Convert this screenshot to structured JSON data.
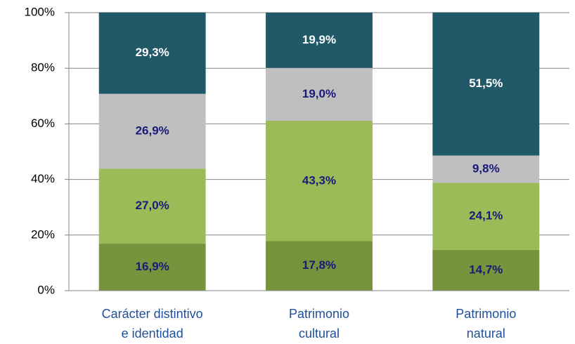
{
  "chart_data": {
    "type": "stacked_bar",
    "categories": [
      [
        "Carácter distintivo",
        "e identidad"
      ],
      [
        "Patrimonio",
        "cultural"
      ],
      [
        "Patrimonio",
        "natural"
      ]
    ],
    "series": [
      {
        "color": "#77933c",
        "label_color": "#1a1a7a",
        "values": [
          16.9,
          17.8,
          14.7
        ],
        "value_labels": [
          "16,9%",
          "17,8%",
          "14,7%"
        ]
      },
      {
        "color": "#9bbb59",
        "label_color": "#1a1a7a",
        "values": [
          27.0,
          43.3,
          24.1
        ],
        "value_labels": [
          "27,0%",
          "43,3%",
          "24,1%"
        ]
      },
      {
        "color": "#bfbfbf",
        "label_color": "#1a1a7a",
        "values": [
          26.9,
          19.0,
          9.8
        ],
        "value_labels": [
          "26,9%",
          "19,0%",
          "9,8%"
        ]
      },
      {
        "color": "#215968",
        "label_color": "#ffffff",
        "values": [
          29.3,
          19.9,
          51.5
        ],
        "value_labels": [
          "29,3%",
          "19,9%",
          "51,5%"
        ]
      }
    ],
    "ylim": [
      0,
      100
    ],
    "yticks": [
      {
        "value": 0,
        "label": "0%"
      },
      {
        "value": 20,
        "label": "20%"
      },
      {
        "value": 40,
        "label": "40%"
      },
      {
        "value": 60,
        "label": "60%"
      },
      {
        "value": 80,
        "label": "80%"
      },
      {
        "value": 100,
        "label": "100%"
      }
    ],
    "grid": true
  }
}
